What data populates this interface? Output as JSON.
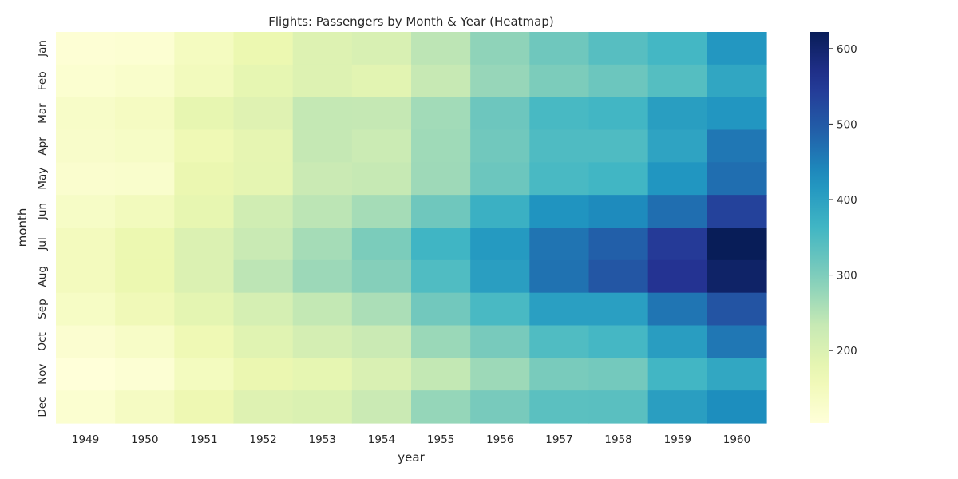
{
  "chart_data": {
    "type": "heatmap",
    "title": "Flights: Passengers by Month & Year (Heatmap)",
    "xlabel": "year",
    "ylabel": "month",
    "x": [
      "1949",
      "1950",
      "1951",
      "1952",
      "1953",
      "1954",
      "1955",
      "1956",
      "1957",
      "1958",
      "1959",
      "1960"
    ],
    "y": [
      "Jan",
      "Feb",
      "Mar",
      "Apr",
      "May",
      "Jun",
      "Jul",
      "Aug",
      "Sep",
      "Oct",
      "Nov",
      "Dec"
    ],
    "values": [
      [
        112,
        115,
        145,
        171,
        196,
        204,
        242,
        284,
        315,
        340,
        360,
        417
      ],
      [
        118,
        126,
        150,
        180,
        196,
        188,
        233,
        277,
        301,
        318,
        342,
        391
      ],
      [
        132,
        141,
        178,
        193,
        236,
        235,
        267,
        317,
        356,
        362,
        406,
        419
      ],
      [
        129,
        135,
        163,
        181,
        235,
        227,
        269,
        313,
        348,
        348,
        396,
        461
      ],
      [
        121,
        125,
        172,
        183,
        229,
        234,
        270,
        318,
        355,
        363,
        420,
        472
      ],
      [
        135,
        149,
        178,
        218,
        243,
        264,
        315,
        374,
        422,
        435,
        472,
        535
      ],
      [
        148,
        170,
        199,
        230,
        264,
        302,
        364,
        413,
        465,
        491,
        548,
        622
      ],
      [
        148,
        170,
        199,
        242,
        272,
        293,
        347,
        405,
        467,
        505,
        559,
        606
      ],
      [
        136,
        158,
        184,
        209,
        237,
        259,
        312,
        355,
        404,
        404,
        463,
        508
      ],
      [
        119,
        133,
        162,
        191,
        211,
        229,
        274,
        306,
        347,
        359,
        407,
        461
      ],
      [
        104,
        114,
        146,
        172,
        180,
        203,
        237,
        271,
        305,
        310,
        362,
        390
      ],
      [
        118,
        140,
        166,
        194,
        201,
        229,
        278,
        306,
        336,
        337,
        405,
        432
      ]
    ],
    "colormap": "YlGnBu",
    "vmin": 104,
    "vmax": 622,
    "colorbar_ticks": [
      200,
      300,
      400,
      500,
      600
    ],
    "grid": false,
    "colorbar_position": "right"
  }
}
